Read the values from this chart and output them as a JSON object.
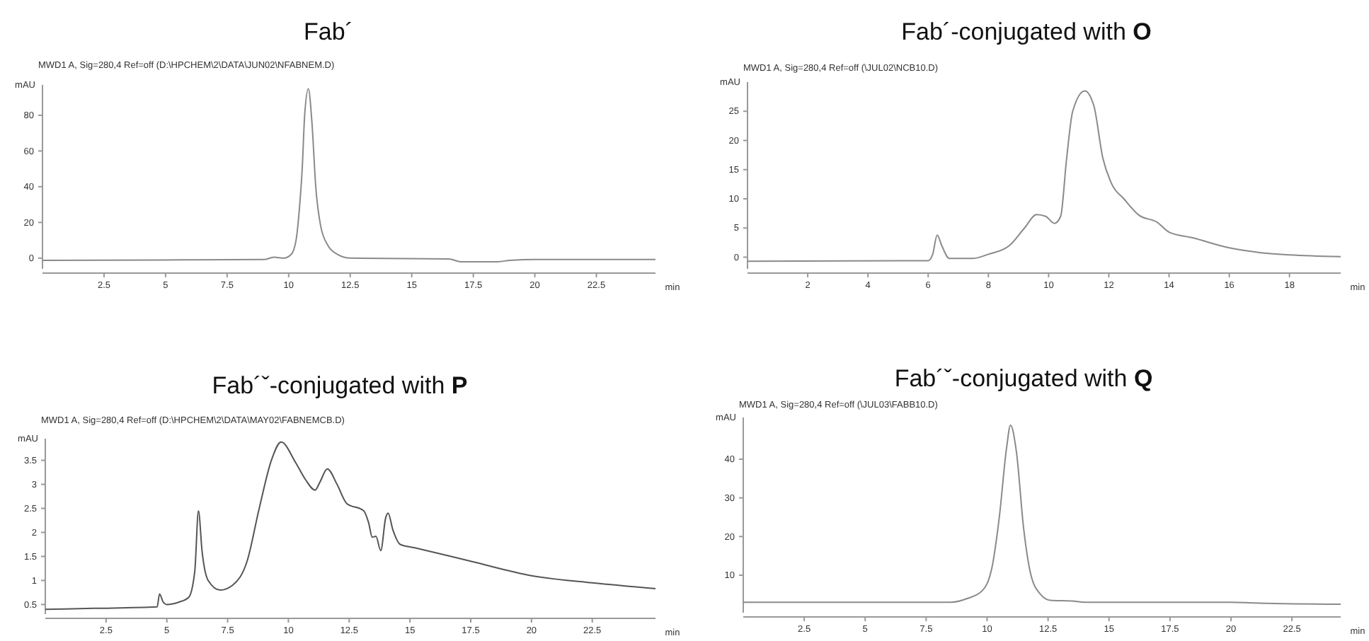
{
  "chart_data": [
    {
      "type": "line",
      "title": "Fab´",
      "subtitle": "MWD1 A, Sig=280,4 Ref=off (D:\\HPCHEM\\2\\DATA\\JUN02\\NFABNEM.D)",
      "xlabel": "min",
      "ylabel": "mAU",
      "color": "#8a8a8a",
      "x": [
        0,
        5,
        9,
        9.4,
        9.8,
        10.1,
        10.3,
        10.45,
        10.55,
        10.65,
        10.8,
        10.95,
        11.1,
        11.3,
        11.6,
        12,
        12.5,
        16.5,
        17,
        18.5,
        19,
        20,
        24.9
      ],
      "values": [
        -1.2,
        -1,
        -0.8,
        0.5,
        0,
        2,
        10,
        30,
        50,
        80,
        94.8,
        75,
        40,
        18,
        7,
        2,
        0,
        -0.5,
        -2,
        -2,
        -1.2,
        -0.8,
        -0.8
      ],
      "xlim": [
        0,
        24.9
      ],
      "ylim": [
        -6,
        97
      ],
      "xticks": [
        2.5,
        5,
        7.5,
        10,
        12.5,
        15,
        17.5,
        20,
        22.5
      ],
      "yticks": [
        0,
        20,
        40,
        60,
        80
      ]
    },
    {
      "type": "line",
      "title": "Fab´-conjugated with O",
      "subtitle": "MWD1 A, Sig=280,4 Ref=off (\\JUL02\\NCB10.D)",
      "xlabel": "min",
      "ylabel": "mAU",
      "color": "#8a8a8a",
      "x": [
        0,
        6,
        6.15,
        6.3,
        6.45,
        6.7,
        7.5,
        8,
        8.7,
        9.2,
        9.6,
        9.9,
        10.2,
        10.4,
        10.6,
        10.8,
        11.2,
        11.5,
        11.8,
        12.1,
        12.5,
        13,
        13.6,
        14,
        14.8,
        16,
        17,
        18,
        19.7
      ],
      "values": [
        -0.7,
        -0.6,
        0.5,
        3.8,
        2,
        -0.2,
        -0.2,
        0.5,
        2,
        5,
        7.3,
        7,
        5.8,
        7,
        17,
        25,
        28.5,
        26,
        17,
        12.5,
        10,
        7.2,
        6,
        4.3,
        3.3,
        1.6,
        0.8,
        0.4,
        0.1
      ],
      "xlim": [
        0,
        19.7
      ],
      "ylim": [
        -2,
        30
      ],
      "xticks": [
        2,
        4,
        6,
        8,
        10,
        12,
        14,
        16,
        18
      ],
      "yticks": [
        0,
        5,
        10,
        15,
        20,
        25
      ]
    },
    {
      "type": "line",
      "title": "Fab´ˇ-conjugated with P",
      "subtitle": "MWD1 A, Sig=280,4 Ref=off (D:\\HPCHEM\\2\\DATA\\MAY02\\FABNEMCB.D)",
      "xlabel": "min",
      "ylabel": "mAU",
      "color": "#555555",
      "x": [
        0,
        2,
        4.6,
        4.7,
        4.85,
        5,
        5.5,
        5.9,
        6.15,
        6.3,
        6.45,
        6.7,
        7.2,
        7.7,
        8.3,
        8.8,
        9.3,
        9.7,
        10.3,
        10.7,
        11.1,
        11.3,
        11.6,
        12,
        12.4,
        13.1,
        13.3,
        13.45,
        13.6,
        13.8,
        14,
        14.1,
        14.3,
        14.6,
        15.2,
        17.5,
        20,
        22.5,
        25.1
      ],
      "values": [
        0.4,
        0.42,
        0.45,
        0.72,
        0.55,
        0.5,
        0.55,
        0.65,
        1.2,
        2.45,
        1.6,
        1,
        0.8,
        0.9,
        1.4,
        2.5,
        3.5,
        3.88,
        3.45,
        3.1,
        2.88,
        3.05,
        3.32,
        3,
        2.6,
        2.45,
        2.2,
        1.9,
        1.92,
        1.62,
        2.3,
        2.4,
        2.05,
        1.75,
        1.68,
        1.4,
        1.1,
        0.95,
        0.83
      ],
      "xlim": [
        0,
        25.1
      ],
      "ylim": [
        0.3,
        3.95
      ],
      "xticks": [
        2.5,
        5,
        7.5,
        10,
        12.5,
        15,
        17.5,
        20,
        22.5
      ],
      "yticks": [
        0.5,
        1,
        1.5,
        2,
        2.5,
        3,
        3.5
      ]
    },
    {
      "type": "line",
      "title": "Fab´ˇ-conjugated with Q",
      "subtitle": "MWD1 A, Sig=280,4 Ref=off (\\JUL03\\FABB10.D)",
      "xlabel": "min",
      "ylabel": "mAU",
      "color": "#8a8a8a",
      "x": [
        0,
        8.5,
        9.2,
        9.8,
        10.2,
        10.5,
        10.8,
        10.96,
        11.2,
        11.5,
        11.8,
        12.2,
        12.6,
        13.5,
        14,
        20,
        21,
        24.5
      ],
      "values": [
        3,
        3,
        4,
        6,
        12,
        25,
        43,
        48.8,
        42,
        22,
        10,
        5,
        3.5,
        3.3,
        3,
        3,
        2.8,
        2.5
      ],
      "xlim": [
        0,
        24.5
      ],
      "ylim": [
        0.3,
        50.8
      ],
      "xticks": [
        2.5,
        5,
        7.5,
        10,
        12.5,
        15,
        17.5,
        20,
        22.5
      ],
      "yticks": [
        10,
        20,
        30,
        40
      ]
    }
  ]
}
